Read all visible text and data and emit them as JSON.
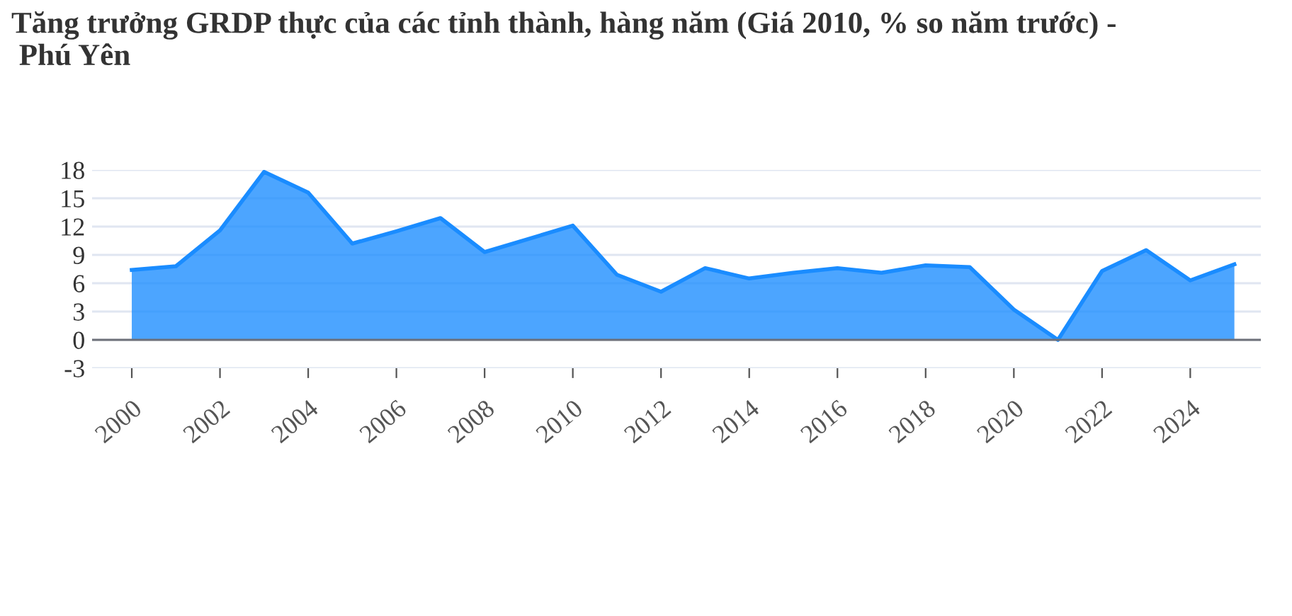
{
  "chart_data": {
    "type": "area",
    "title": "Tăng trưởng GRDP thực của các tỉnh thành, hàng năm (Giá 2010, % so năm trước) -\n Phú Yên",
    "categories": [
      "2000",
      null,
      "2002",
      null,
      "2004",
      null,
      "2006",
      null,
      "2008",
      null,
      "2010",
      null,
      "2012",
      null,
      "2014",
      null,
      "2016",
      null,
      "2018",
      null,
      "2020",
      null,
      "2022",
      null,
      "2024",
      null
    ],
    "series": [
      {
        "color": "#1a8cff",
        "values": [
          7.4,
          7.8,
          11.6,
          17.8,
          15.6,
          10.2,
          11.5,
          12.9,
          9.3,
          10.7,
          12.1,
          6.9,
          5.1,
          7.6,
          6.5,
          7.1,
          7.6,
          7.1,
          7.9,
          7.7,
          3.2,
          0,
          7.3,
          9.5,
          6.3,
          8.0
        ]
      }
    ],
    "ylim": [
      -3,
      18
    ],
    "yticks": [
      -3,
      0,
      3,
      6,
      9,
      12,
      15,
      18
    ],
    "grid": "y"
  }
}
